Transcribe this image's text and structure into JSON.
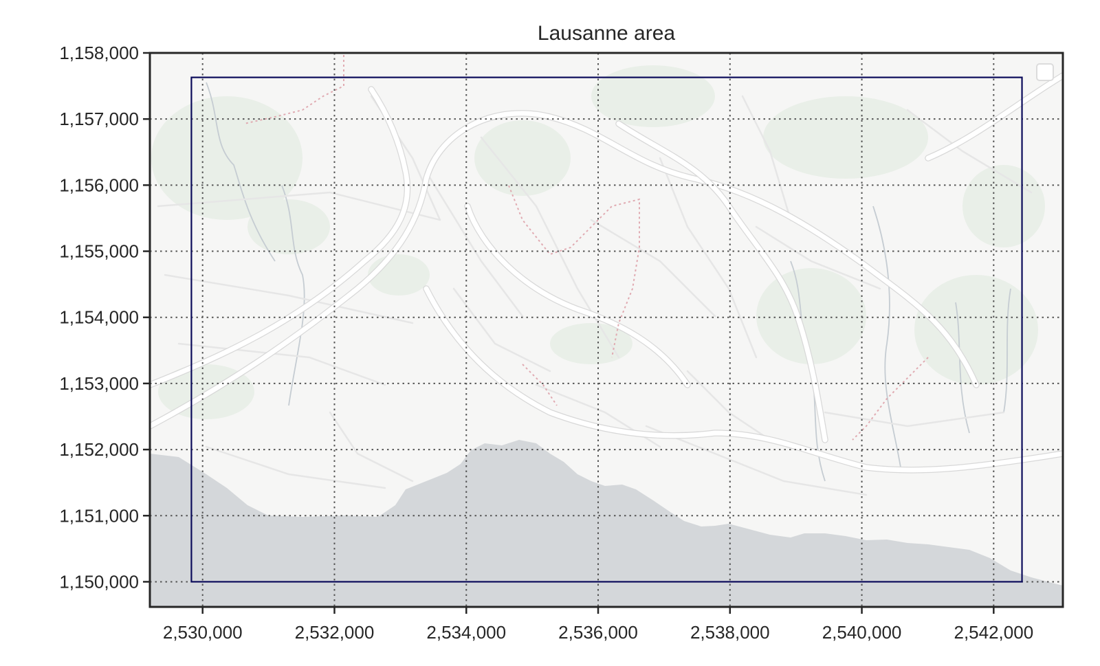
{
  "chart_data": {
    "type": "map",
    "title": "Lausanne area",
    "xlabel": "",
    "ylabel": "",
    "xlim": [
      2529200,
      2543050
    ],
    "ylim": [
      1149620,
      1158000
    ],
    "x_ticks": [
      2530000,
      2532000,
      2534000,
      2536000,
      2538000,
      2540000,
      2542000
    ],
    "x_tick_labels": [
      "2,530,000",
      "2,532,000",
      "2,534,000",
      "2,536,000",
      "2,538,000",
      "2,540,000",
      "2,542,000"
    ],
    "y_ticks": [
      1150000,
      1151000,
      1152000,
      1153000,
      1154000,
      1155000,
      1156000,
      1157000,
      1158000
    ],
    "y_tick_labels": [
      "1,150,000",
      "1,151,000",
      "1,152,000",
      "1,153,000",
      "1,154,000",
      "1,155,000",
      "1,156,000",
      "1,157,000",
      "1,158,000"
    ],
    "grid": true,
    "basemap": "light street map with Lake Geneva along the south",
    "extent_box": {
      "x": [
        2529830,
        2542430
      ],
      "y": [
        1150000,
        1157630
      ],
      "color": "#0b0b5a"
    },
    "legend": {
      "placement": "top-right",
      "entries": []
    },
    "colors": {
      "land": "#f6f6f5",
      "water": "#d4d7da",
      "roads": "#ffffff",
      "green": "#e9efe8"
    }
  }
}
